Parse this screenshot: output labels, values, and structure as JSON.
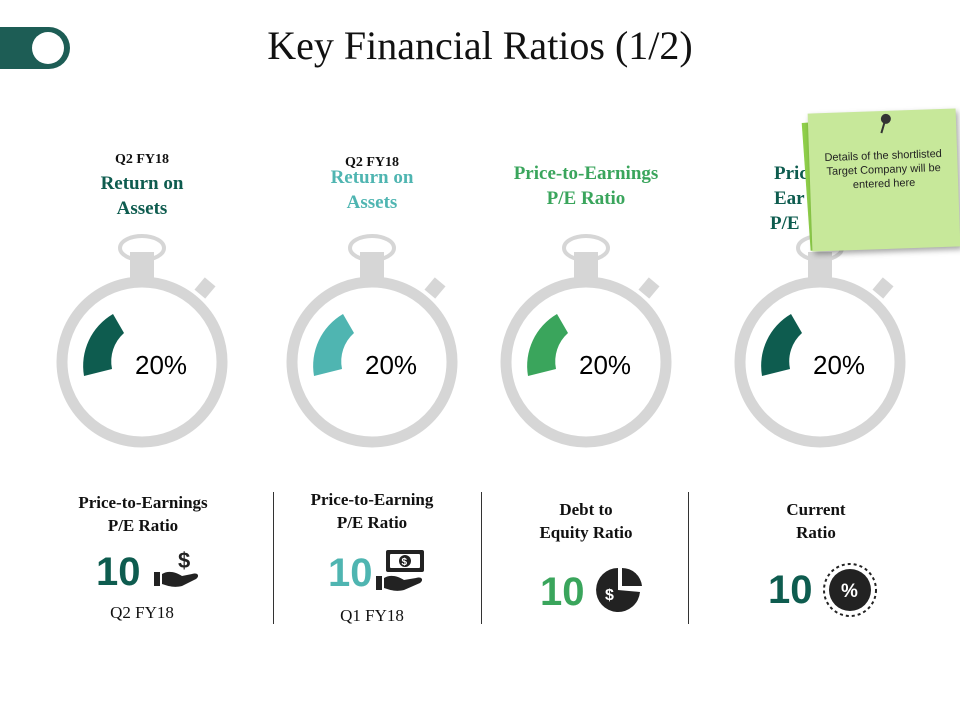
{
  "slide": {
    "title": "Key Financial Ratios (1/2)"
  },
  "colors": {
    "dark_green": "#0e5c4f",
    "teal": "#4fb5b1",
    "green": "#3aa55c",
    "gauge_gray": "#d6d6d6",
    "text": "#3b3b3b"
  },
  "gauges": [
    {
      "quarter": "Q2 FY18",
      "title_line1": "Return on",
      "title_line2": "Assets",
      "percent": "20%",
      "color": "#0e5c4f"
    },
    {
      "quarter": "Q2 FY18",
      "title_line1": "Return on",
      "title_line2": "Assets",
      "percent": "20%",
      "color": "#4fb5b1"
    },
    {
      "title_line1": "Price-to-Earnings",
      "title_line2": "P/E Ratio",
      "percent": "20%",
      "color": "#3aa55c"
    },
    {
      "title_line1": "Pric",
      "title_line2": "Ear",
      "title_line3": "P/E",
      "percent": "20%",
      "color": "#0e5c4f"
    }
  ],
  "sticky_note": {
    "text": "Details of the shortlisted Target Company will be entered here"
  },
  "metrics": [
    {
      "title_line1": "Price-to-Earnings",
      "title_line2": "P/E Ratio",
      "value": "10",
      "sub_label": "Q2 FY18",
      "icon": "hand-dollar-icon",
      "color": "#0e5c4f"
    },
    {
      "title_line1": "Price-to-Earning",
      "title_line2": "P/E Ratio",
      "value": "10",
      "sub_label": "Q1 FY18",
      "icon": "hand-banknote-icon",
      "color": "#4fb5b1"
    },
    {
      "title_line1": "Debt to",
      "title_line2": "Equity Ratio",
      "value": "10",
      "icon": "pie-dollar-icon",
      "color": "#3aa55c"
    },
    {
      "title_line1": "Current",
      "title_line2": "Ratio",
      "value": "10",
      "icon": "percent-badge-icon",
      "color": "#0e5c4f"
    }
  ]
}
